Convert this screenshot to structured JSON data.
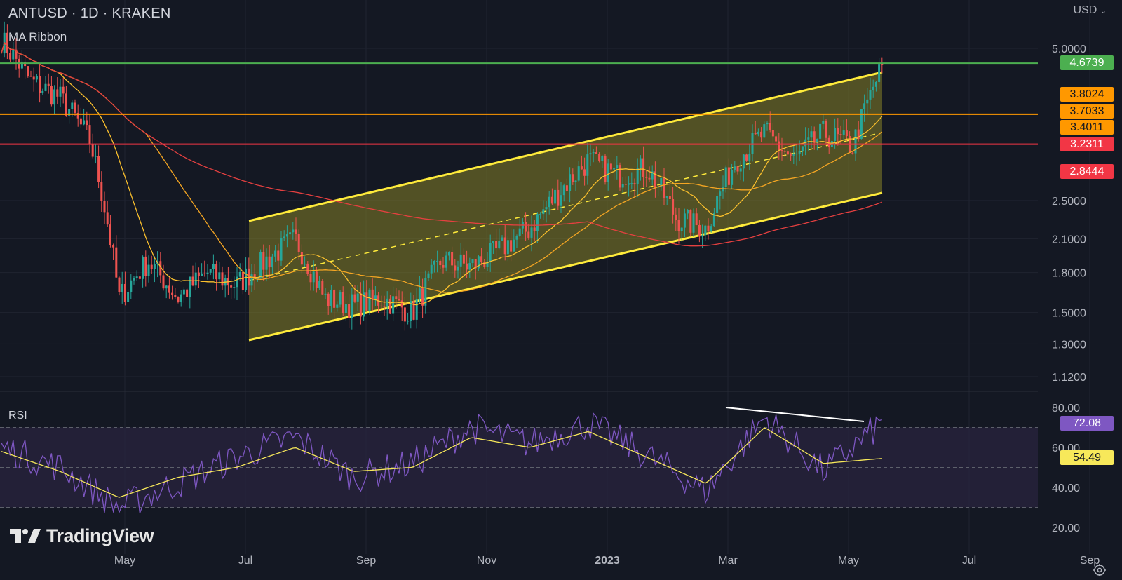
{
  "header": {
    "title": "ANTUSD · 1D · KRAKEN",
    "indicator": "MA Ribbon",
    "currency": "USD",
    "rsi_label": "RSI"
  },
  "brand": {
    "name": "TradingView"
  },
  "icons": {
    "settings": "gear-icon",
    "currency_dropdown": "chevron-down-icon",
    "logo": "tradingview-logo-icon"
  },
  "colors": {
    "background": "#141823",
    "candle_up": "#26a69a",
    "candle_down": "#ef5350",
    "channel": "#ffeb3b",
    "channel_fill": "#8f8a28",
    "ma_fast": "#fbc02d",
    "ma_mid": "#f5a623",
    "ma_slow": "#e64040",
    "rsi_line": "#7e57c2",
    "rsi_ma": "#f7e85a",
    "rsi_band": "#2a2440",
    "level_green": "#4caf50",
    "level_orange": "#ff9800",
    "level_red": "#f23645"
  },
  "price_axis": {
    "labels": [
      "5.0000",
      "2.5000",
      "2.1000",
      "1.8000",
      "1.5000",
      "1.3000",
      "1.1200"
    ],
    "tags": [
      {
        "label": "4.6739",
        "bg": "#4caf50",
        "fg": "#ffffff"
      },
      {
        "label": "3.8024",
        "bg": "#ff9800",
        "fg": "#131722"
      },
      {
        "label": "3.7033",
        "bg": "#ff9800",
        "fg": "#131722"
      },
      {
        "label": "3.4011",
        "bg": "#ff9800",
        "fg": "#131722"
      },
      {
        "label": "3.2311",
        "bg": "#f23645",
        "fg": "#ffffff"
      },
      {
        "label": "2.8444",
        "bg": "#f23645",
        "fg": "#ffffff"
      }
    ]
  },
  "rsi_axis": {
    "labels": [
      "80.00",
      "60.00",
      "40.00",
      "20.00"
    ],
    "tags": [
      {
        "label": "72.08",
        "bg": "#7e57c2",
        "fg": "#ffffff"
      },
      {
        "label": "54.49",
        "bg": "#f7e85a",
        "fg": "#131722"
      }
    ]
  },
  "time_axis": {
    "labels": [
      "May",
      "Jul",
      "Sep",
      "Nov",
      "2023",
      "Mar",
      "May",
      "Jul",
      "Sep"
    ]
  },
  "chart_data": [
    {
      "type": "line",
      "title": "ANTUSD · 1D · KRAKEN",
      "y_scale": "log",
      "x": [
        "2022-03-15",
        "2022-04-01",
        "2022-04-15",
        "2022-05-01",
        "2022-05-15",
        "2022-06-01",
        "2022-06-15",
        "2022-07-01",
        "2022-07-15",
        "2022-08-01",
        "2022-08-15",
        "2022-09-01",
        "2022-09-15",
        "2022-10-01",
        "2022-10-15",
        "2022-11-01",
        "2022-11-15",
        "2022-12-01",
        "2022-12-15",
        "2023-01-01",
        "2023-01-15",
        "2023-02-01",
        "2023-02-15",
        "2023-03-01",
        "2023-03-15",
        "2023-04-01",
        "2023-04-15",
        "2023-05-01",
        "2023-05-15",
        "2023-06-01",
        "2023-06-15"
      ],
      "series": [
        {
          "values": [
            5.2,
            4.3,
            4.0,
            3.3,
            1.6,
            1.9,
            1.6,
            1.8,
            1.7,
            1.9,
            2.1,
            1.6,
            1.55,
            1.6,
            1.5,
            1.9,
            1.85,
            2.0,
            2.2,
            2.6,
            3.0,
            2.8,
            2.9,
            2.3,
            2.2,
            3.0,
            3.4,
            3.0,
            3.4,
            3.2,
            4.6
          ]
        }
      ],
      "levels": [
        4.6739,
        3.7033,
        3.2311
      ],
      "tags": [
        4.6739,
        3.8024,
        3.7033,
        3.4011,
        3.2311,
        2.8444
      ],
      "axis_labels": [
        5.0,
        2.5,
        2.1,
        1.8,
        1.5,
        1.3,
        1.12
      ]
    },
    {
      "type": "line",
      "title": "RSI",
      "ylim": [
        20,
        80
      ],
      "x": [
        "2022-03-15",
        "2022-04-15",
        "2022-05-15",
        "2022-06-15",
        "2022-07-15",
        "2022-08-15",
        "2022-09-15",
        "2022-10-15",
        "2022-11-15",
        "2022-12-15",
        "2023-01-15",
        "2023-02-15",
        "2023-03-15",
        "2023-04-15",
        "2023-05-15",
        "2023-06-15"
      ],
      "series": [
        {
          "values": [
            60,
            50,
            30,
            42,
            55,
            65,
            45,
            52,
            70,
            62,
            72,
            56,
            38,
            75,
            48,
            72.08
          ]
        },
        {
          "values": [
            58,
            48,
            35,
            45,
            50,
            60,
            48,
            50,
            65,
            60,
            68,
            55,
            42,
            70,
            52,
            54.49
          ]
        }
      ],
      "bands": [
        70,
        50,
        30
      ]
    }
  ]
}
